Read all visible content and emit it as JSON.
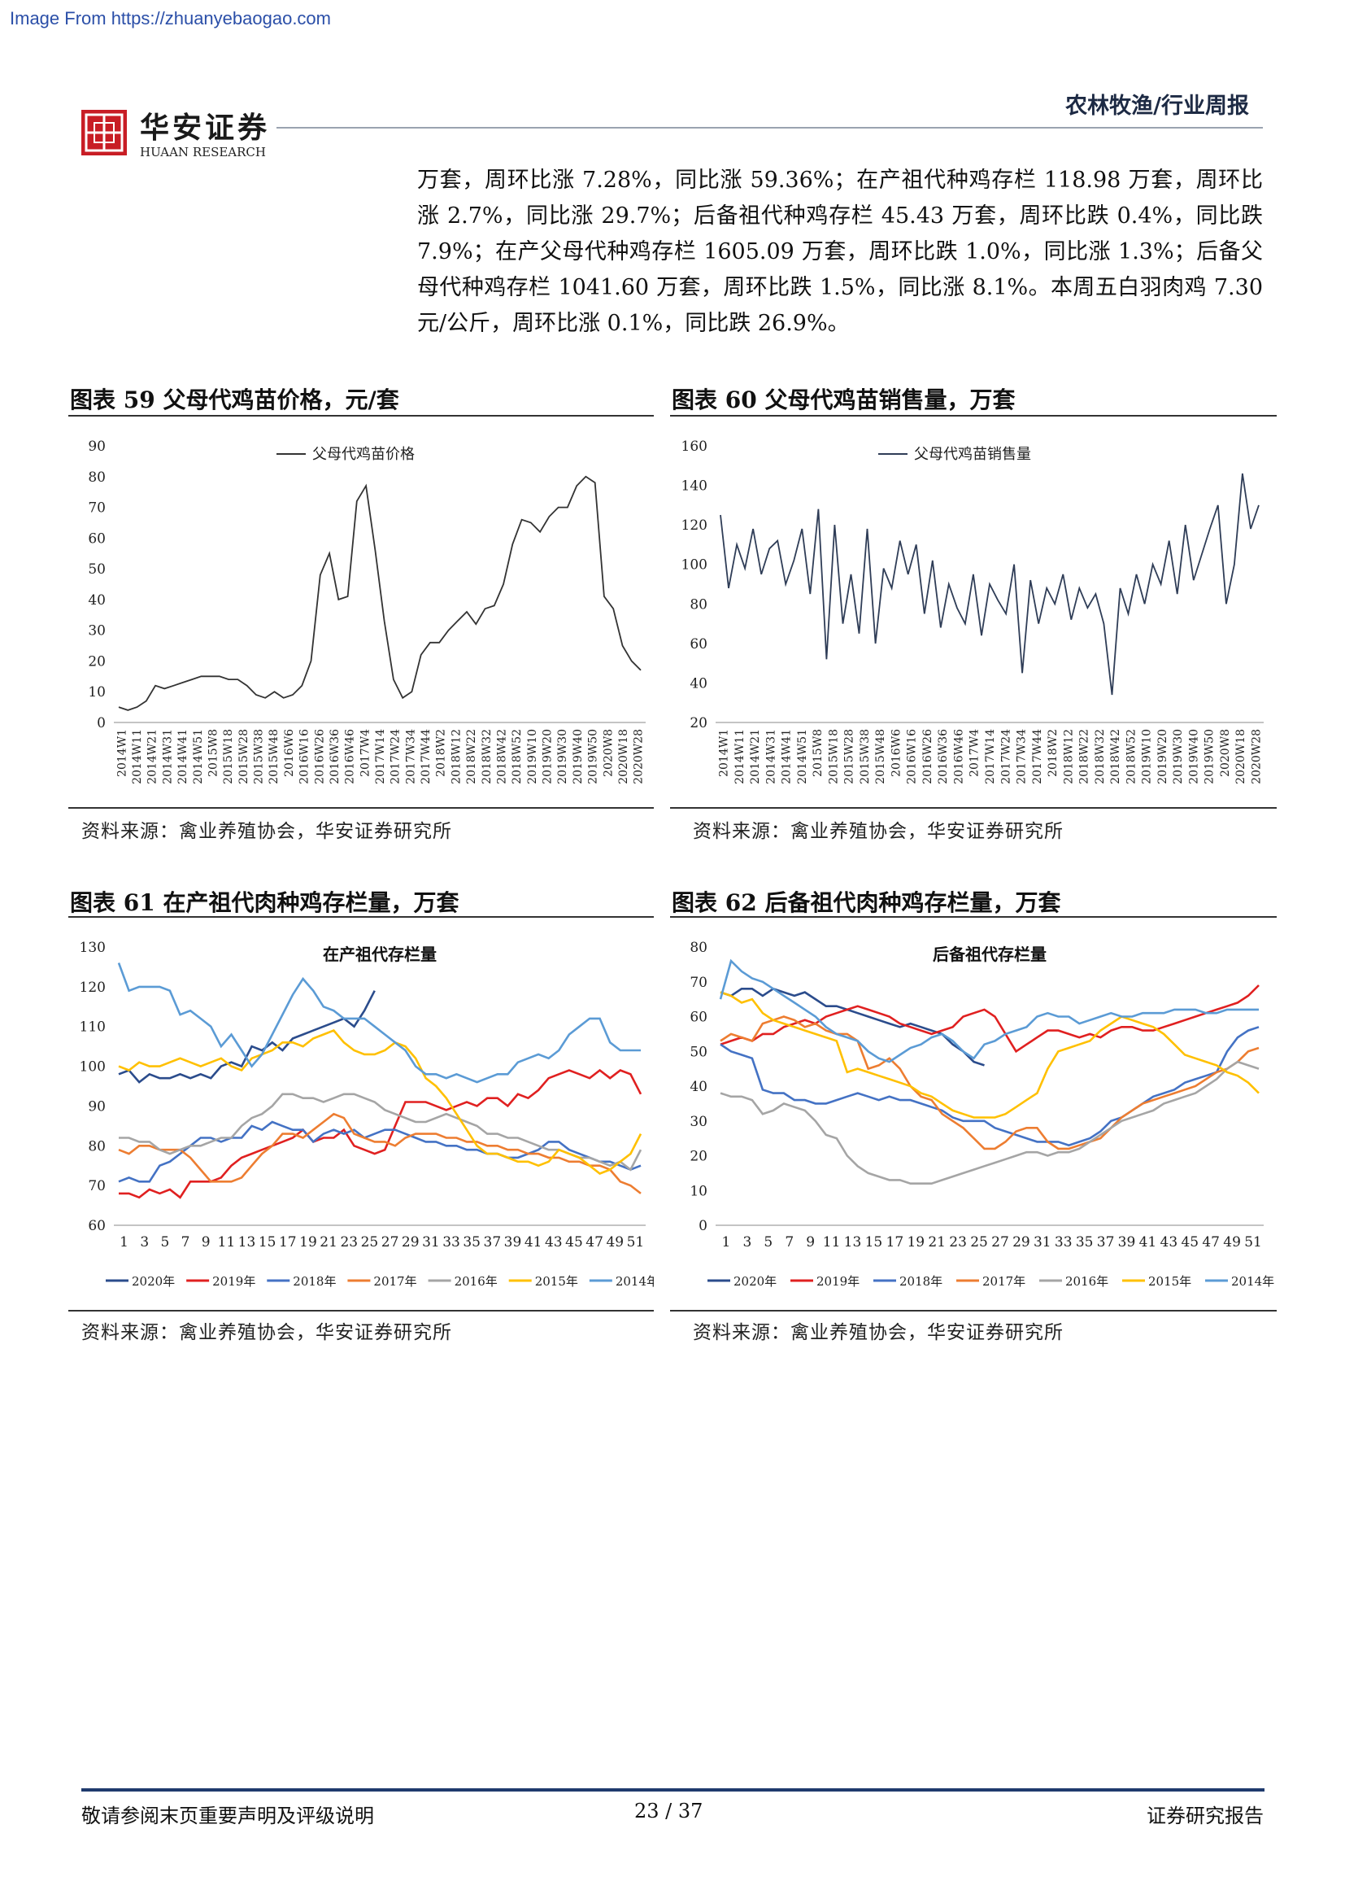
{
  "watermark": "Image From https://zhuanyebaogao.com",
  "header": {
    "logo_cn": "华安证券",
    "logo_en": "HUAAN RESEARCH",
    "category": "农林牧渔/行业周报"
  },
  "body_text": "万套，周环比涨 7.28%，同比涨 59.36%；在产祖代种鸡存栏 118.98 万套，周环比涨 2.7%，同比涨 29.7%；后备祖代种鸡存栏 45.43 万套，周环比跌 0.4%，同比跌 7.9%；在产父母代种鸡存栏 1605.09 万套，周环比跌 1.0%，同比涨 1.3%；后备父母代种鸡存栏 1041.60 万套，周环比跌 1.5%，同比涨 8.1%。本周五白羽肉鸡 7.30 元/公斤，周环比涨 0.1%，同比跌 26.9%。",
  "figures": {
    "fig59": {
      "title": "图表 59 父母代鸡苗价格，元/套",
      "source": "资料来源：禽业养殖协会，华安证券研究所"
    },
    "fig60": {
      "title": "图表 60 父母代鸡苗销售量，万套",
      "source": "资料来源：禽业养殖协会，华安证券研究所"
    },
    "fig61": {
      "title": "图表 61 在产祖代肉种鸡存栏量，万套",
      "source": "资料来源：禽业养殖协会，华安证券研究所"
    },
    "fig62": {
      "title": "图表 62 后备祖代肉种鸡存栏量，万套",
      "source": "资料来源：禽业养殖协会，华安证券研究所"
    }
  },
  "chart_data": [
    {
      "id": "c59",
      "type": "line",
      "title": "",
      "ylim": [
        0,
        90
      ],
      "yticks": [
        0,
        10,
        20,
        30,
        40,
        50,
        60,
        70,
        80,
        90
      ],
      "x_labels": [
        "2014W1",
        "2014W11",
        "2014W21",
        "2014W31",
        "2014W41",
        "2014W51",
        "2015W8",
        "2015W18",
        "2015W28",
        "2015W38",
        "2015W48",
        "2016W6",
        "2016W16",
        "2016W26",
        "2016W36",
        "2016W46",
        "2017W4",
        "2017W14",
        "2017W24",
        "2017W34",
        "2017W44",
        "2018W2",
        "2018W12",
        "2018W22",
        "2018W32",
        "2018W42",
        "2018W52",
        "2019W10",
        "2019W20",
        "2019W30",
        "2019W40",
        "2019W50",
        "2020W8",
        "2020W18",
        "2020W28"
      ],
      "legend": "top-center",
      "series": [
        {
          "name": "父母代鸡苗价格",
          "color": "#333333",
          "values": [
            5,
            4,
            5,
            7,
            12,
            11,
            12,
            13,
            14,
            15,
            15,
            15,
            14,
            14,
            12,
            9,
            8,
            10,
            8,
            9,
            12,
            20,
            48,
            55,
            40,
            41,
            72,
            77,
            56,
            33,
            14,
            8,
            10,
            22,
            26,
            26,
            30,
            33,
            36,
            32,
            37,
            38,
            45,
            58,
            66,
            65,
            62,
            67,
            70,
            70,
            77,
            80,
            78,
            41,
            37,
            25,
            20,
            17
          ]
        }
      ]
    },
    {
      "id": "c60",
      "type": "line",
      "title": "",
      "ylim": [
        20,
        160
      ],
      "yticks": [
        20,
        40,
        60,
        80,
        100,
        120,
        140,
        160
      ],
      "x_labels": [
        "2014W1",
        "2014W11",
        "2014W21",
        "2014W31",
        "2014W41",
        "2014W51",
        "2015W8",
        "2015W18",
        "2015W28",
        "2015W38",
        "2015W48",
        "2016W6",
        "2016W16",
        "2016W26",
        "2016W36",
        "2016W46",
        "2017W4",
        "2017W14",
        "2017W24",
        "2017W34",
        "2017W44",
        "2018W2",
        "2018W12",
        "2018W22",
        "2018W32",
        "2018W42",
        "2018W52",
        "2019W10",
        "2019W20",
        "2019W30",
        "2019W40",
        "2019W50",
        "2020W8",
        "2020W18",
        "2020W28"
      ],
      "legend": "top-center",
      "series": [
        {
          "name": "父母代鸡苗销售量",
          "color": "#2f3d57",
          "values": [
            125,
            88,
            110,
            98,
            118,
            95,
            108,
            112,
            90,
            102,
            118,
            85,
            128,
            52,
            120,
            70,
            95,
            65,
            118,
            60,
            98,
            88,
            112,
            95,
            110,
            75,
            102,
            68,
            90,
            78,
            70,
            95,
            64,
            90,
            82,
            75,
            100,
            45,
            92,
            70,
            88,
            80,
            95,
            72,
            88,
            78,
            85,
            70,
            34,
            88,
            75,
            95,
            80,
            100,
            90,
            112,
            85,
            120,
            92,
            105,
            118,
            130,
            80,
            100,
            146,
            118,
            130
          ]
        }
      ]
    },
    {
      "id": "c61",
      "type": "line",
      "title": "在产祖代存栏量",
      "ylim": [
        60,
        130
      ],
      "yticks": [
        60,
        70,
        80,
        90,
        100,
        110,
        120,
        130
      ],
      "x_labels": [
        "1",
        "3",
        "5",
        "7",
        "9",
        "11",
        "13",
        "15",
        "17",
        "19",
        "21",
        "23",
        "25",
        "27",
        "29",
        "31",
        "33",
        "35",
        "37",
        "39",
        "41",
        "43",
        "45",
        "47",
        "49",
        "51"
      ],
      "legend": "bottom",
      "series": [
        {
          "name": "2020年",
          "color": "#2b4c8c",
          "values": [
            98,
            99,
            96,
            98,
            97,
            97,
            98,
            97,
            98,
            97,
            100,
            101,
            100,
            105,
            104,
            106,
            104,
            107,
            108,
            109,
            110,
            111,
            112,
            110,
            114,
            119
          ]
        },
        {
          "name": "2019年",
          "color": "#e02020",
          "values": [
            68,
            68,
            67,
            69,
            68,
            69,
            67,
            71,
            71,
            71,
            72,
            75,
            77,
            78,
            79,
            80,
            81,
            82,
            84,
            81,
            82,
            82,
            84,
            80,
            79,
            78,
            79,
            85,
            91,
            91,
            91,
            90,
            89,
            90,
            91,
            90,
            92,
            92,
            90,
            93,
            92,
            94,
            97,
            98,
            99,
            98,
            97,
            99,
            97,
            99,
            98,
            93
          ]
        },
        {
          "name": "2018年",
          "color": "#4472c4",
          "values": [
            71,
            72,
            71,
            71,
            75,
            76,
            78,
            80,
            82,
            82,
            81,
            82,
            82,
            85,
            84,
            86,
            85,
            84,
            84,
            81,
            83,
            84,
            83,
            84,
            82,
            83,
            84,
            84,
            83,
            82,
            81,
            81,
            80,
            80,
            79,
            79,
            78,
            78,
            77,
            77,
            78,
            79,
            81,
            81,
            79,
            78,
            77,
            76,
            76,
            75,
            74,
            75
          ]
        },
        {
          "name": "2017年",
          "color": "#ed7d31",
          "values": [
            79,
            78,
            80,
            80,
            79,
            79,
            79,
            77,
            74,
            71,
            71,
            71,
            72,
            75,
            78,
            80,
            83,
            83,
            82,
            84,
            86,
            88,
            87,
            83,
            82,
            81,
            81,
            80,
            82,
            83,
            83,
            83,
            82,
            82,
            81,
            81,
            80,
            80,
            79,
            79,
            78,
            78,
            77,
            77,
            76,
            76,
            75,
            75,
            74,
            71,
            70,
            68
          ]
        },
        {
          "name": "2016年",
          "color": "#a5a5a5",
          "values": [
            82,
            82,
            81,
            81,
            79,
            78,
            79,
            80,
            80,
            81,
            82,
            82,
            85,
            87,
            88,
            90,
            93,
            93,
            92,
            92,
            91,
            92,
            93,
            93,
            92,
            91,
            89,
            88,
            87,
            86,
            86,
            87,
            88,
            87,
            86,
            85,
            83,
            83,
            82,
            82,
            81,
            80,
            79,
            79,
            78,
            77,
            77,
            76,
            75,
            76,
            74,
            79
          ]
        },
        {
          "name": "2015年",
          "color": "#ffc000",
          "values": [
            100,
            99,
            101,
            100,
            100,
            101,
            102,
            101,
            100,
            101,
            102,
            100,
            99,
            102,
            103,
            104,
            106,
            106,
            105,
            107,
            108,
            109,
            106,
            104,
            103,
            103,
            104,
            106,
            105,
            102,
            97,
            95,
            92,
            88,
            84,
            80,
            78,
            78,
            77,
            76,
            76,
            75,
            76,
            79,
            78,
            77,
            75,
            73,
            74,
            76,
            78,
            83
          ]
        },
        {
          "name": "2014年",
          "color": "#5b9bd5",
          "values": [
            126,
            119,
            120,
            120,
            120,
            119,
            113,
            114,
            112,
            110,
            105,
            108,
            104,
            100,
            103,
            108,
            113,
            118,
            122,
            119,
            115,
            114,
            112,
            112,
            112,
            110,
            108,
            106,
            104,
            100,
            98,
            98,
            97,
            98,
            97,
            96,
            97,
            98,
            98,
            101,
            102,
            103,
            102,
            104,
            108,
            110,
            112,
            112,
            106,
            104,
            104,
            104
          ]
        }
      ]
    },
    {
      "id": "c62",
      "type": "line",
      "title": "后备祖代存栏量",
      "ylim": [
        0,
        80
      ],
      "yticks": [
        0,
        10,
        20,
        30,
        40,
        50,
        60,
        70,
        80
      ],
      "x_labels": [
        "1",
        "3",
        "5",
        "7",
        "9",
        "11",
        "13",
        "15",
        "17",
        "19",
        "21",
        "23",
        "25",
        "27",
        "29",
        "31",
        "33",
        "35",
        "37",
        "39",
        "41",
        "43",
        "45",
        "47",
        "49",
        "51"
      ],
      "legend": "bottom",
      "series": [
        {
          "name": "2020年",
          "color": "#2b4c8c",
          "values": [
            67,
            66,
            68,
            68,
            66,
            68,
            67,
            66,
            67,
            65,
            63,
            63,
            62,
            61,
            60,
            59,
            58,
            57,
            58,
            57,
            56,
            55,
            52,
            50,
            47,
            46
          ]
        },
        {
          "name": "2019年",
          "color": "#e02020",
          "values": [
            52,
            53,
            54,
            53,
            55,
            55,
            57,
            58,
            59,
            58,
            60,
            61,
            62,
            63,
            62,
            61,
            60,
            58,
            57,
            56,
            55,
            56,
            57,
            60,
            61,
            62,
            60,
            55,
            50,
            52,
            54,
            56,
            56,
            55,
            54,
            55,
            54,
            56,
            57,
            57,
            56,
            56,
            57,
            58,
            59,
            60,
            61,
            62,
            63,
            64,
            66,
            69
          ]
        },
        {
          "name": "2018年",
          "color": "#4472c4",
          "values": [
            52,
            50,
            49,
            48,
            39,
            38,
            38,
            36,
            36,
            35,
            35,
            36,
            37,
            38,
            37,
            36,
            37,
            36,
            36,
            35,
            34,
            33,
            31,
            30,
            30,
            30,
            28,
            27,
            26,
            25,
            24,
            24,
            24,
            23,
            24,
            25,
            27,
            30,
            31,
            33,
            35,
            37,
            38,
            39,
            41,
            42,
            43,
            44,
            50,
            54,
            56,
            57
          ]
        },
        {
          "name": "2017年",
          "color": "#ed7d31",
          "values": [
            53,
            55,
            54,
            53,
            58,
            59,
            60,
            59,
            57,
            58,
            56,
            55,
            55,
            53,
            45,
            46,
            48,
            45,
            40,
            37,
            36,
            32,
            30,
            28,
            25,
            22,
            22,
            24,
            27,
            28,
            28,
            24,
            22,
            22,
            23,
            24,
            25,
            28,
            31,
            33,
            35,
            36,
            37,
            38,
            39,
            40,
            42,
            44,
            45,
            47,
            50,
            51
          ]
        },
        {
          "name": "2016年",
          "color": "#a5a5a5",
          "values": [
            38,
            37,
            37,
            36,
            32,
            33,
            35,
            34,
            33,
            30,
            26,
            25,
            20,
            17,
            15,
            14,
            13,
            13,
            12,
            12,
            12,
            13,
            14,
            15,
            16,
            17,
            18,
            19,
            20,
            21,
            21,
            20,
            21,
            21,
            22,
            24,
            26,
            28,
            30,
            31,
            32,
            33,
            35,
            36,
            37,
            38,
            40,
            42,
            45,
            47,
            46,
            45
          ]
        },
        {
          "name": "2015年",
          "color": "#ffc000",
          "values": [
            67,
            66,
            64,
            65,
            61,
            59,
            58,
            57,
            56,
            55,
            54,
            53,
            44,
            45,
            44,
            43,
            42,
            41,
            40,
            38,
            37,
            35,
            33,
            32,
            31,
            31,
            31,
            32,
            34,
            36,
            38,
            45,
            50,
            51,
            52,
            53,
            56,
            58,
            60,
            59,
            58,
            57,
            55,
            52,
            49,
            48,
            47,
            46,
            44,
            43,
            41,
            38
          ]
        },
        {
          "name": "2014年",
          "color": "#5b9bd5",
          "values": [
            65,
            76,
            73,
            71,
            70,
            68,
            66,
            64,
            62,
            60,
            57,
            55,
            54,
            53,
            50,
            48,
            47,
            49,
            51,
            52,
            54,
            55,
            53,
            50,
            48,
            52,
            53,
            55,
            56,
            57,
            60,
            61,
            60,
            60,
            58,
            59,
            60,
            61,
            60,
            60,
            61,
            61,
            61,
            62,
            62,
            62,
            61,
            61,
            62,
            62,
            62,
            62
          ]
        }
      ]
    }
  ],
  "footer": {
    "left": "敬请参阅末页重要声明及评级说明",
    "center": "23 / 37",
    "right": "证券研究报告"
  }
}
